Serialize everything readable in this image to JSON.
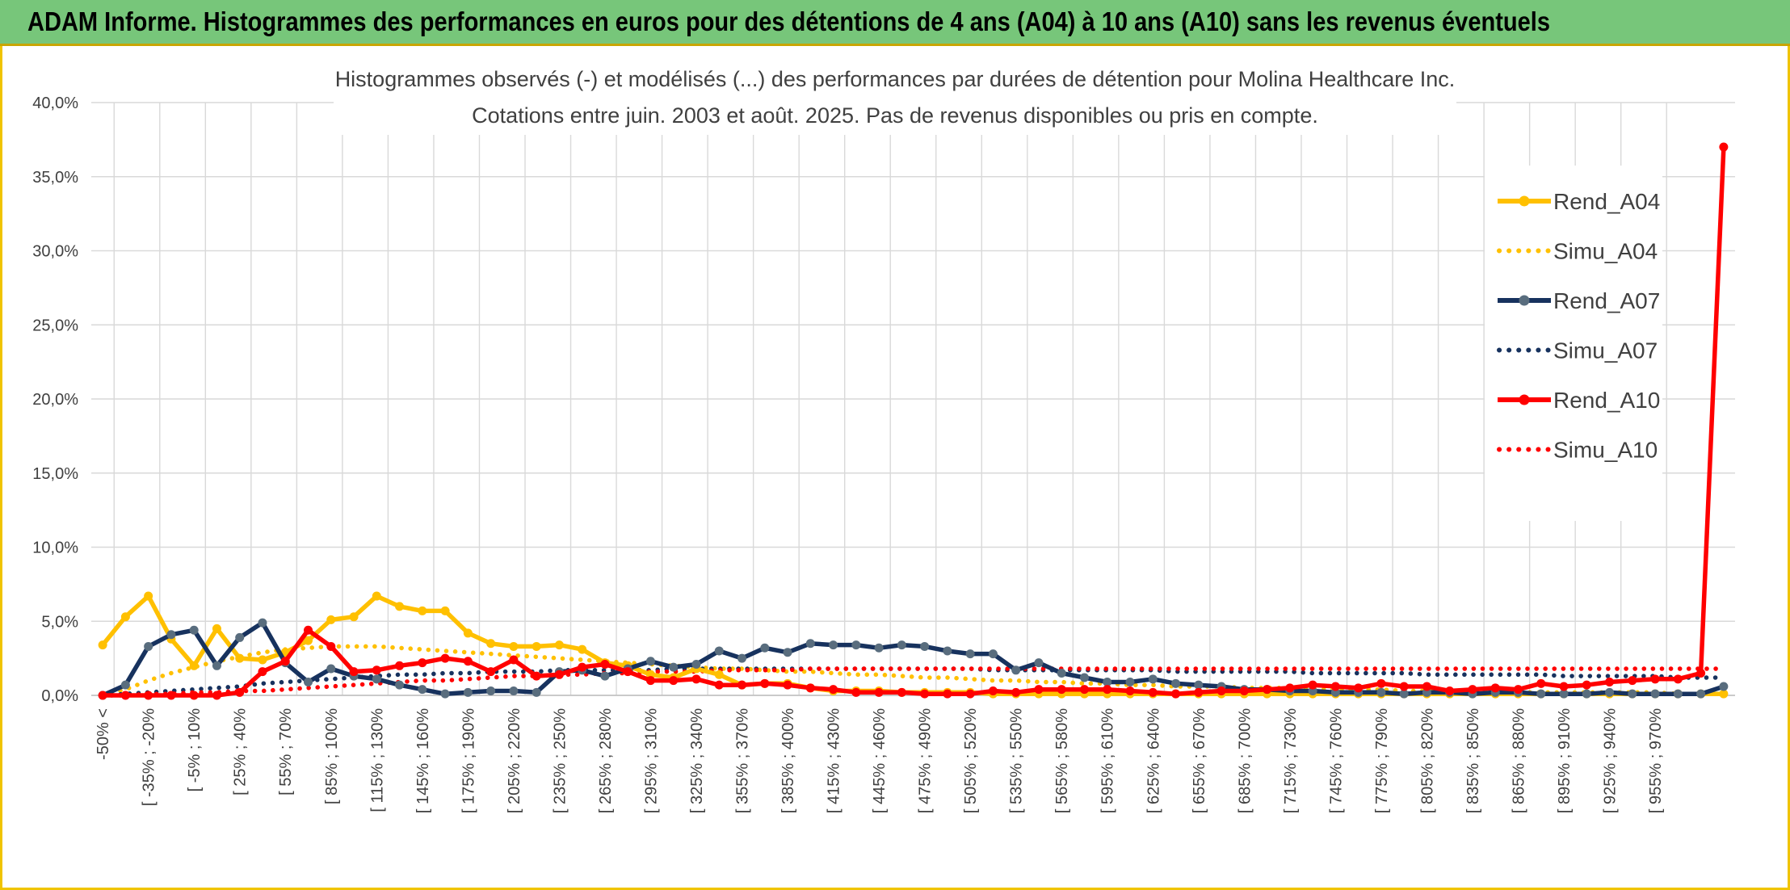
{
  "banner": {
    "title": "ADAM Informe. Histogrammes des performances en euros pour des détentions de 4 ans (A04) à 10 ans (A10) sans les revenus éventuels"
  },
  "colors": {
    "banner_bg": "#77c67a",
    "frame": "#f0c400",
    "A04": "#ffc000",
    "A07": "#17325e",
    "A10": "#ff0000",
    "marker_A07": "#596d7e"
  },
  "chart_data": {
    "type": "line",
    "title": "Histogrammes observés (-) et modélisés (...) des performances par durées de détention pour Molina Healthcare Inc.",
    "subtitle": "Cotations entre juin. 2003 et août. 2025. Pas de revenus disponibles ou pris en compte.",
    "ylim": [
      0,
      40
    ],
    "yticks": [
      "0,0%",
      "5,0%",
      "10,0%",
      "15,0%",
      "20,0%",
      "25,0%",
      "30,0%",
      "35,0%",
      "40,0%"
    ],
    "grid": true,
    "legend_position": "right",
    "x_tick_labels": [
      "-50% <",
      "[ -35% ; -20%",
      "[ -5% ; 10%",
      "[ 25% ; 40%",
      "[ 55% ; 70%",
      "[ 85% ; 100%",
      "[ 115% ; 130%",
      "[ 145% ; 160%",
      "[ 175% ; 190%",
      "[ 205% ; 220%",
      "[ 235% ; 250%",
      "[ 265% ; 280%",
      "[ 295% ; 310%",
      "[ 325% ; 340%",
      "[ 355% ; 370%",
      "[ 385% ; 400%",
      "[ 415% ; 430%",
      "[ 445% ; 460%",
      "[ 475% ; 490%",
      "[ 505% ; 520%",
      "[ 535% ; 550%",
      "[ 565% ; 580%",
      "[ 595% ; 610%",
      "[ 625% ; 640%",
      "[ 655% ; 670%",
      "[ 685% ; 700%",
      "[ 715% ; 730%",
      "[ 745% ; 760%",
      "[ 775% ; 790%",
      "[ 805% ; 820%",
      "[ 835% ; 850%",
      "[ 865% ; 880%",
      "[ 895% ; 910%",
      "[ 925% ; 940%",
      "[ 955% ; 970%"
    ],
    "category_count": 72,
    "x_tick_every": 2,
    "series": [
      {
        "name": "Rend_A04",
        "style": "solid",
        "color": "#ffc000",
        "marker": true,
        "values": [
          3.4,
          5.3,
          6.7,
          3.8,
          2.0,
          4.5,
          2.5,
          2.4,
          2.9,
          3.7,
          5.1,
          5.3,
          6.7,
          6.0,
          5.7,
          5.7,
          4.2,
          3.5,
          3.3,
          3.3,
          3.4,
          3.1,
          2.2,
          2.0,
          1.4,
          1.2,
          1.8,
          1.4,
          0.7,
          0.8,
          0.8,
          0.5,
          0.3,
          0.3,
          0.3,
          0.2,
          0.2,
          0.2,
          0.2,
          0.1,
          0.1,
          0.1,
          0.1,
          0.1,
          0.1,
          0.1,
          0.1,
          0.1,
          0.1,
          0.1,
          0.1,
          0.1,
          0.1,
          0.1,
          0.1,
          0.1,
          0.1,
          0.1,
          0.1,
          0.1,
          0.1,
          0.1,
          0.1,
          0.1,
          0.1,
          0.1,
          0.1,
          0.1,
          0.1,
          0.1,
          0.1,
          0.1
        ]
      },
      {
        "name": "Simu_A04",
        "style": "dotted",
        "color": "#ffc000",
        "marker": false,
        "values": [
          0.1,
          0.4,
          1.0,
          1.5,
          1.9,
          2.3,
          2.6,
          2.9,
          3.1,
          3.2,
          3.3,
          3.3,
          3.3,
          3.2,
          3.1,
          3.0,
          2.9,
          2.8,
          2.7,
          2.6,
          2.5,
          2.4,
          2.3,
          2.2,
          2.1,
          2.0,
          1.9,
          1.8,
          1.8,
          1.7,
          1.6,
          1.6,
          1.5,
          1.4,
          1.4,
          1.3,
          1.2,
          1.2,
          1.1,
          1.0,
          1.0,
          0.9,
          0.9,
          0.8,
          0.8,
          0.7,
          0.7,
          0.6,
          0.6,
          0.6,
          0.5,
          0.5,
          0.5,
          0.4,
          0.4,
          0.4,
          0.4,
          0.3,
          0.3,
          0.3,
          0.3,
          0.3,
          0.2,
          0.2,
          0.2,
          0.2,
          0.2,
          0.2,
          0.2,
          0.1,
          0.1,
          0.1
        ]
      },
      {
        "name": "Rend_A07",
        "style": "solid",
        "color": "#17325e",
        "marker": true,
        "values": [
          0.0,
          0.7,
          3.3,
          4.1,
          4.4,
          2.0,
          3.9,
          4.9,
          2.2,
          0.9,
          1.8,
          1.3,
          1.1,
          0.7,
          0.4,
          0.1,
          0.2,
          0.3,
          0.3,
          0.2,
          1.6,
          1.7,
          1.3,
          1.8,
          2.3,
          1.9,
          2.1,
          3.0,
          2.5,
          3.2,
          2.9,
          3.5,
          3.4,
          3.4,
          3.2,
          3.4,
          3.3,
          3.0,
          2.8,
          2.8,
          1.7,
          2.2,
          1.5,
          1.2,
          0.9,
          0.9,
          1.1,
          0.8,
          0.7,
          0.6,
          0.4,
          0.4,
          0.3,
          0.3,
          0.2,
          0.2,
          0.2,
          0.1,
          0.2,
          0.2,
          0.1,
          0.2,
          0.2,
          0.1,
          0.1,
          0.1,
          0.2,
          0.1,
          0.1,
          0.1,
          0.1,
          0.6
        ]
      },
      {
        "name": "Simu_A07",
        "style": "dotted",
        "color": "#17325e",
        "marker": false,
        "values": [
          0.0,
          0.1,
          0.2,
          0.3,
          0.4,
          0.5,
          0.6,
          0.8,
          0.9,
          1.0,
          1.1,
          1.2,
          1.3,
          1.4,
          1.4,
          1.5,
          1.5,
          1.6,
          1.6,
          1.6,
          1.7,
          1.7,
          1.7,
          1.7,
          1.7,
          1.8,
          1.8,
          1.8,
          1.8,
          1.8,
          1.8,
          1.8,
          1.8,
          1.8,
          1.8,
          1.8,
          1.8,
          1.8,
          1.8,
          1.7,
          1.7,
          1.7,
          1.7,
          1.7,
          1.7,
          1.7,
          1.7,
          1.6,
          1.6,
          1.6,
          1.6,
          1.6,
          1.6,
          1.5,
          1.5,
          1.5,
          1.5,
          1.5,
          1.4,
          1.4,
          1.4,
          1.4,
          1.4,
          1.4,
          1.3,
          1.3,
          1.3,
          1.3,
          1.3,
          1.2,
          1.2,
          1.2
        ]
      },
      {
        "name": "Rend_A10",
        "style": "solid",
        "color": "#ff0000",
        "marker": true,
        "values": [
          0.0,
          0.0,
          0.0,
          0.0,
          0.0,
          0.0,
          0.2,
          1.6,
          2.3,
          4.4,
          3.3,
          1.6,
          1.7,
          2.0,
          2.2,
          2.5,
          2.3,
          1.6,
          2.4,
          1.3,
          1.4,
          1.9,
          2.1,
          1.6,
          1.0,
          1.0,
          1.1,
          0.7,
          0.7,
          0.8,
          0.7,
          0.5,
          0.4,
          0.2,
          0.2,
          0.2,
          0.1,
          0.1,
          0.1,
          0.3,
          0.2,
          0.4,
          0.4,
          0.4,
          0.4,
          0.3,
          0.2,
          0.1,
          0.2,
          0.3,
          0.3,
          0.4,
          0.5,
          0.7,
          0.6,
          0.5,
          0.8,
          0.6,
          0.6,
          0.3,
          0.4,
          0.5,
          0.4,
          0.8,
          0.6,
          0.7,
          0.9,
          1.0,
          1.1,
          1.1,
          1.5,
          37.0
        ]
      },
      {
        "name": "Simu_A10",
        "style": "dotted",
        "color": "#ff0000",
        "marker": false,
        "values": [
          0.0,
          0.0,
          0.1,
          0.1,
          0.2,
          0.2,
          0.3,
          0.3,
          0.4,
          0.5,
          0.6,
          0.7,
          0.8,
          0.9,
          1.0,
          1.0,
          1.1,
          1.2,
          1.3,
          1.3,
          1.4,
          1.4,
          1.5,
          1.5,
          1.6,
          1.6,
          1.6,
          1.7,
          1.7,
          1.7,
          1.7,
          1.8,
          1.8,
          1.8,
          1.8,
          1.8,
          1.8,
          1.8,
          1.8,
          1.8,
          1.8,
          1.8,
          1.8,
          1.8,
          1.8,
          1.8,
          1.8,
          1.8,
          1.8,
          1.8,
          1.8,
          1.8,
          1.8,
          1.8,
          1.8,
          1.8,
          1.8,
          1.8,
          1.8,
          1.8,
          1.8,
          1.8,
          1.8,
          1.8,
          1.8,
          1.8,
          1.8,
          1.8,
          1.8,
          1.8,
          1.8,
          1.8
        ]
      }
    ]
  }
}
